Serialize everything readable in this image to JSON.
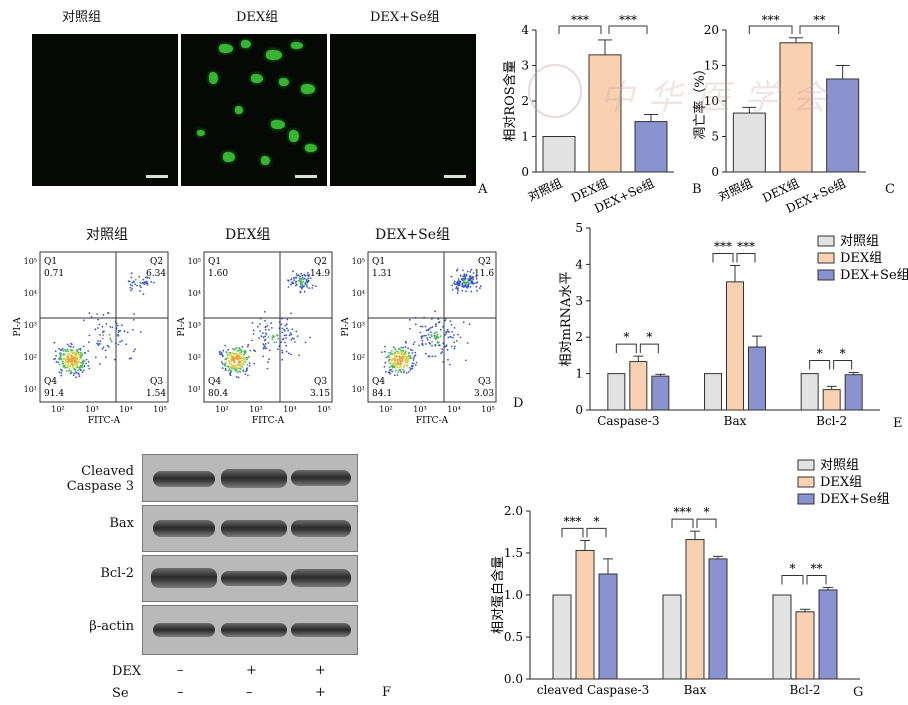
{
  "panelA": {
    "titles": [
      "对照组",
      "DEX组",
      "DEX+Se组"
    ],
    "letter": "A"
  },
  "panelB": {
    "letter": "B",
    "chart_data": {
      "type": "bar",
      "categories": [
        "对照组",
        "DEX组",
        "DEX+Se组"
      ],
      "values": [
        1.0,
        3.3,
        1.42
      ],
      "errors": [
        0,
        0.42,
        0.2
      ],
      "ylabel": "相对ROS含量",
      "ylim": [
        0,
        4
      ],
      "yticks": [
        0,
        1,
        2,
        3,
        4
      ],
      "colors": [
        "#e2e2e2",
        "#f9d1b2",
        "#8a92d0"
      ],
      "significance": [
        "***",
        "***"
      ]
    }
  },
  "panelC": {
    "letter": "C",
    "chart_data": {
      "type": "bar",
      "categories": [
        "对照组",
        "DEX组",
        "DEX+Se组"
      ],
      "values": [
        8.3,
        18.2,
        13.1
      ],
      "errors": [
        0.8,
        0.7,
        1.9
      ],
      "ylabel": "凋亡率（%）",
      "ylim": [
        0,
        20
      ],
      "yticks": [
        0,
        5,
        10,
        15,
        20
      ],
      "colors": [
        "#e2e2e2",
        "#f9d1b2",
        "#8a92d0"
      ],
      "significance": [
        "***",
        "**"
      ]
    }
  },
  "panelD": {
    "letter": "D",
    "titles": [
      "对照组",
      "DEX组",
      "DEX+Se组"
    ],
    "ylabel": "PI-A",
    "xlabel": "FITC-A",
    "ytick_labels": [
      "10⁵",
      "10⁴",
      "10³",
      "10²",
      "10¹"
    ],
    "xtick_labels": [
      "10²",
      "10³",
      "10⁴",
      "10⁵"
    ],
    "plots": [
      {
        "Q1": "0.71",
        "Q2": "6.34",
        "Q3": "1.54",
        "Q4": "91.4"
      },
      {
        "Q1": "1.60",
        "Q2": "14.9",
        "Q3": "3.15",
        "Q4": "80.4"
      },
      {
        "Q1": "1.31",
        "Q2": "11.6",
        "Q3": "3.03",
        "Q4": "84.1"
      }
    ],
    "quadrant_names": [
      "Q1",
      "Q2",
      "Q3",
      "Q4"
    ]
  },
  "panelE": {
    "letter": "E",
    "chart_data": {
      "type": "bar",
      "categories": [
        "Caspase-3",
        "Bax",
        "Bcl-2"
      ],
      "series": [
        {
          "name": "对照组",
          "values": [
            1.0,
            1.0,
            1.0
          ],
          "errors": [
            0,
            0,
            0
          ]
        },
        {
          "name": "DEX组",
          "values": [
            1.33,
            3.52,
            0.56
          ],
          "errors": [
            0.15,
            0.45,
            0.09
          ]
        },
        {
          "name": "DEX+Se组",
          "values": [
            0.93,
            1.73,
            0.97
          ],
          "errors": [
            0.05,
            0.3,
            0.06
          ]
        }
      ],
      "ylabel": "相对mRNA水平",
      "ylim": [
        0,
        5
      ],
      "yticks": [
        0,
        1,
        2,
        3,
        4,
        5
      ],
      "colors": [
        "#e2e2e2",
        "#f9d1b2",
        "#8a92d0"
      ],
      "significance": [
        [
          "*",
          "*"
        ],
        [
          "***",
          "***"
        ],
        [
          "*",
          "*"
        ]
      ]
    }
  },
  "panelF": {
    "letter": "F",
    "labels": [
      "Cleaved\nCaspase 3",
      "Bax",
      "Bcl-2",
      "β-actin"
    ],
    "row_labels": [
      "DEX",
      "Se"
    ],
    "dex_signs": [
      "–",
      "+",
      "+"
    ],
    "se_signs": [
      "–",
      "–",
      "+"
    ]
  },
  "panelG": {
    "letter": "G",
    "chart_data": {
      "type": "bar",
      "categories": [
        "cleaved Caspase-3",
        "Bax",
        "Bcl-2"
      ],
      "series": [
        {
          "name": "对照组",
          "values": [
            1.0,
            1.0,
            1.0
          ],
          "errors": [
            0,
            0,
            0
          ]
        },
        {
          "name": "DEX组",
          "values": [
            1.53,
            1.66,
            0.8
          ],
          "errors": [
            0.12,
            0.1,
            0.03
          ]
        },
        {
          "name": "DEX+Se组",
          "values": [
            1.25,
            1.43,
            1.06
          ],
          "errors": [
            0.18,
            0.03,
            0.03
          ]
        }
      ],
      "ylabel": "相对蛋白含量",
      "ylim": [
        0,
        2.0
      ],
      "yticks": [
        "0.0",
        "0.5",
        "1.0",
        "1.5",
        "2.0"
      ],
      "colors": [
        "#e2e2e2",
        "#f9d1b2",
        "#8a92d0"
      ],
      "significance": [
        [
          "***",
          "*"
        ],
        [
          "***",
          "*"
        ],
        [
          "*",
          "**"
        ]
      ]
    }
  },
  "watermark": "中华医学会"
}
